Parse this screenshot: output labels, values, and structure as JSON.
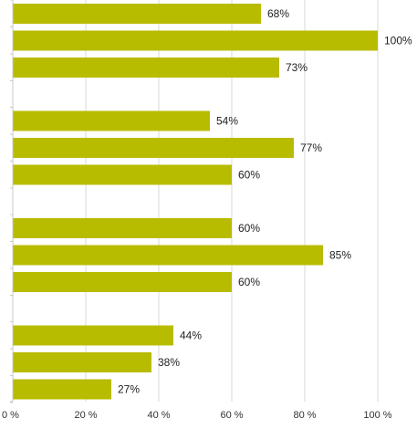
{
  "chart_data": {
    "type": "bar",
    "orientation": "horizontal",
    "bar_color": "#b8bc00",
    "grid": true,
    "xlim": [
      0,
      110
    ],
    "x_ticks": [
      0,
      20,
      40,
      60,
      80,
      100
    ],
    "x_tick_labels": [
      "0 %",
      "20 %",
      "40 %",
      "60 %",
      "80 %",
      "100 %"
    ],
    "groups": [
      {
        "values": [
          68,
          100,
          73
        ],
        "labels": [
          "68%",
          "100%",
          "73%"
        ]
      },
      {
        "values": [
          54,
          77,
          60
        ],
        "labels": [
          "54%",
          "77%",
          "60%"
        ]
      },
      {
        "values": [
          60,
          85,
          60
        ],
        "labels": [
          "60%",
          "85%",
          "60%"
        ]
      },
      {
        "values": [
          44,
          38,
          27
        ],
        "labels": [
          "44%",
          "38%",
          "27%"
        ]
      }
    ]
  }
}
